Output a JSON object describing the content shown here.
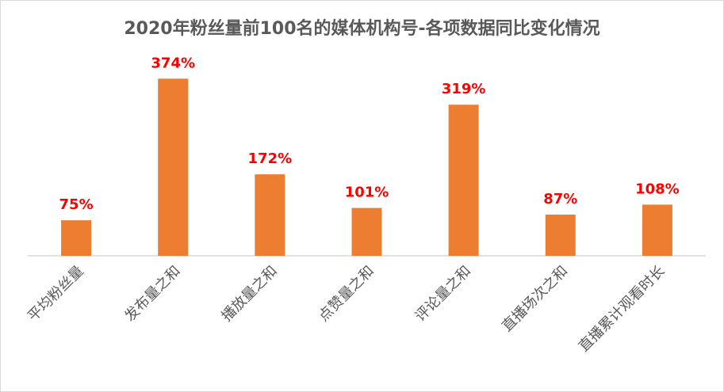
{
  "chart_data": {
    "type": "bar",
    "title": "2020年粉丝量前100名的媒体机构号-各项数据同比变化情况",
    "categories": [
      "平均粉丝量",
      "发布量之和",
      "播放量之和",
      "点赞量之和",
      "评论量之和",
      "直播场次之和",
      "直播累计观看时长"
    ],
    "values": [
      75,
      374,
      172,
      101,
      319,
      87,
      108
    ],
    "data_labels": [
      "75%",
      "374%",
      "172%",
      "101%",
      "319%",
      "87%",
      "108%"
    ],
    "ylim": [
      0,
      400
    ],
    "grid": false,
    "legend": "none",
    "colors": {
      "bar": "#ED7D31",
      "data_label": "#FF0000",
      "axis": "#D9D9D9",
      "tick_label": "#595959",
      "title": "#595959"
    }
  }
}
